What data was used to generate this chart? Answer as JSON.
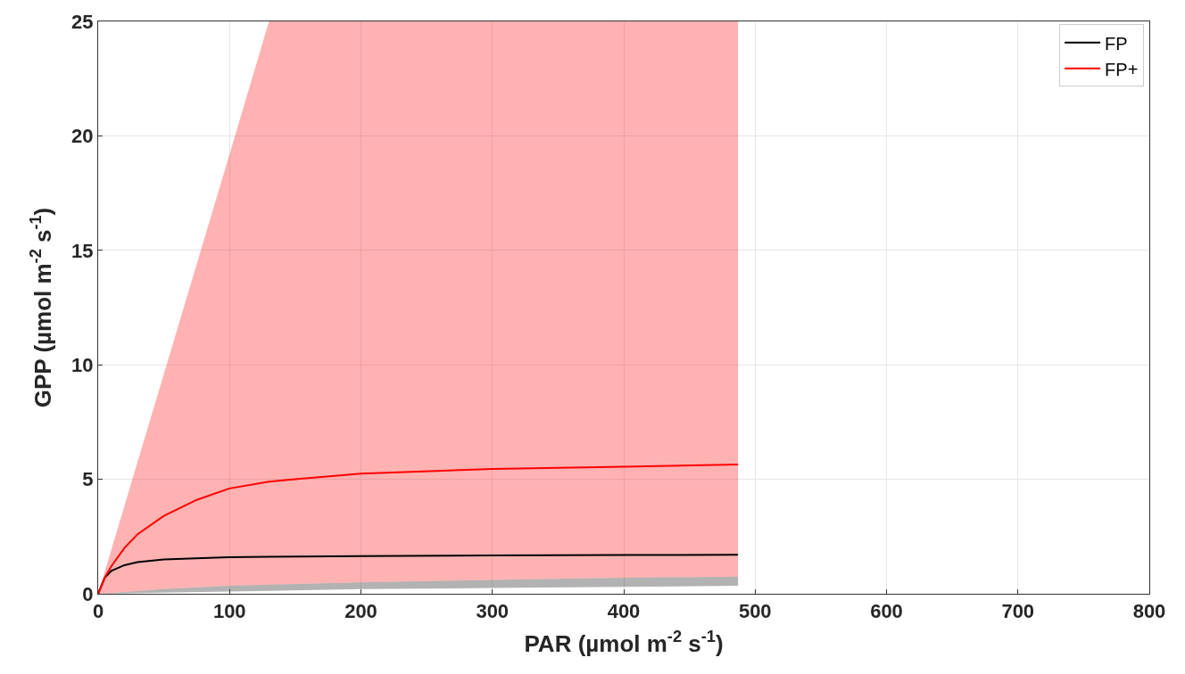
{
  "chart_data": {
    "type": "line",
    "xlabel": "PAR (µmol m$^{-2}$ s$^{-1}$)",
    "ylabel": "GPP (µmol m$^{-2}$ s$^{-1}$)",
    "xlim": [
      0,
      800
    ],
    "xticks": [
      0,
      100,
      200,
      300,
      400,
      500,
      600,
      700,
      800
    ],
    "ylim": [
      0,
      25
    ],
    "yticks": [
      0,
      5,
      10,
      15,
      20,
      25
    ],
    "grid": true,
    "legend": "top right",
    "marker": "none",
    "line_style": "solid",
    "series": [
      {
        "name": "FP",
        "color": "#000000",
        "x": [
          0,
          5,
          10,
          20,
          30,
          50,
          100,
          130,
          200,
          300,
          400,
          487
        ],
        "values": [
          0,
          0.7,
          1.0,
          1.25,
          1.38,
          1.5,
          1.6,
          1.62,
          1.65,
          1.67,
          1.69,
          1.7
        ],
        "lower": [
          0,
          0.005,
          0.01,
          0.02,
          0.03,
          0.05,
          0.1,
          0.13,
          0.2,
          0.25,
          0.3,
          0.35
        ],
        "upper": [
          0,
          0.02,
          0.04,
          0.08,
          0.12,
          0.2,
          0.35,
          0.4,
          0.5,
          0.6,
          0.7,
          0.75
        ]
      },
      {
        "name": "FP+",
        "color": "#ff0000",
        "x": [
          0,
          5,
          10,
          20,
          30,
          50,
          75,
          100,
          130,
          150,
          200,
          300,
          400,
          487
        ],
        "values": [
          0,
          0.7,
          1.2,
          2.0,
          2.6,
          3.4,
          4.1,
          4.6,
          4.9,
          5.0,
          5.25,
          5.45,
          5.55,
          5.65
        ],
        "lower": [
          0,
          0.02,
          0.04,
          0.08,
          0.12,
          0.2,
          0.28,
          0.35,
          0.4,
          0.43,
          0.5,
          0.6,
          0.7,
          0.75
        ],
        "upper": [
          0,
          0.96,
          1.92,
          3.84,
          5.76,
          9.6,
          14.4,
          19.2,
          25,
          25,
          25,
          25,
          25,
          25
        ]
      }
    ]
  }
}
